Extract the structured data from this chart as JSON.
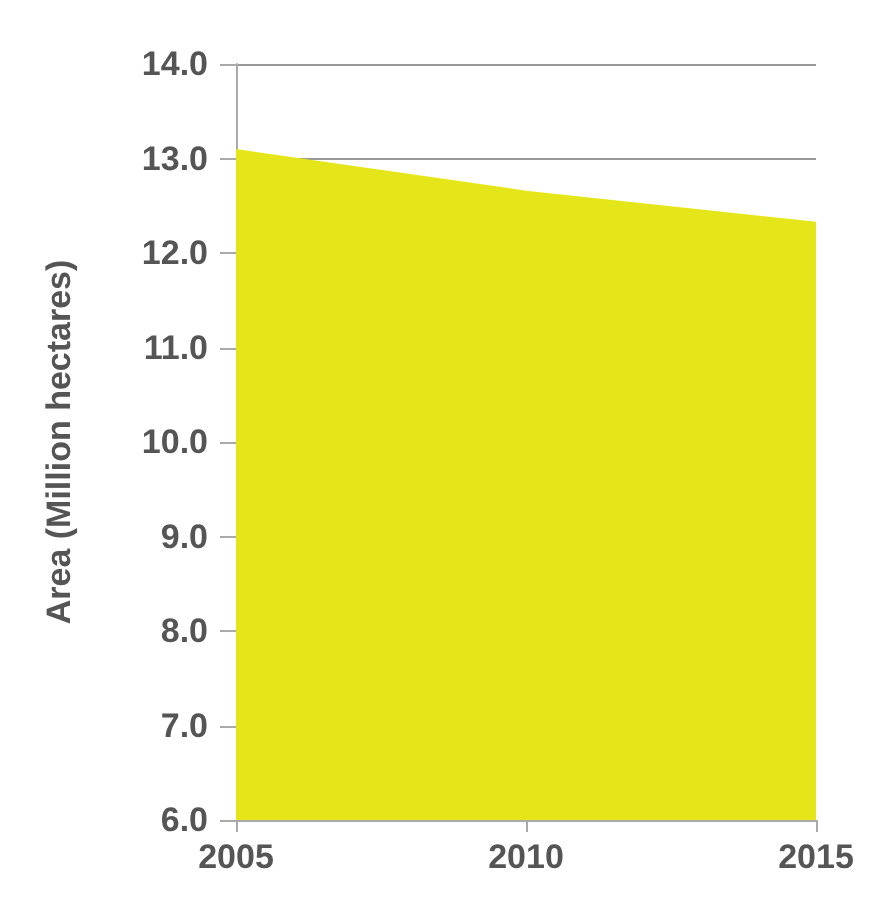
{
  "chart_data": {
    "type": "area",
    "ylabel": "Area (Million hectares)",
    "x": [
      2005,
      2010,
      2015
    ],
    "xlim": [
      2005,
      2015
    ],
    "xticks": [
      2005,
      2010,
      2015
    ],
    "values": [
      13.1,
      12.66,
      12.33
    ],
    "color": "#e5e619",
    "ylim": [
      6,
      14
    ],
    "yticks": [
      {
        "value": 6,
        "label": "6.0"
      },
      {
        "value": 7,
        "label": "7.0"
      },
      {
        "value": 8,
        "label": "8.0"
      },
      {
        "value": 9,
        "label": "9.0"
      },
      {
        "value": 10,
        "label": "10.0"
      },
      {
        "value": 11,
        "label": "11.0"
      },
      {
        "value": 12,
        "label": "12.0"
      },
      {
        "value": 13,
        "label": "13.0"
      },
      {
        "value": 14,
        "label": "14.0"
      }
    ],
    "grid": "y",
    "marker": "none"
  }
}
